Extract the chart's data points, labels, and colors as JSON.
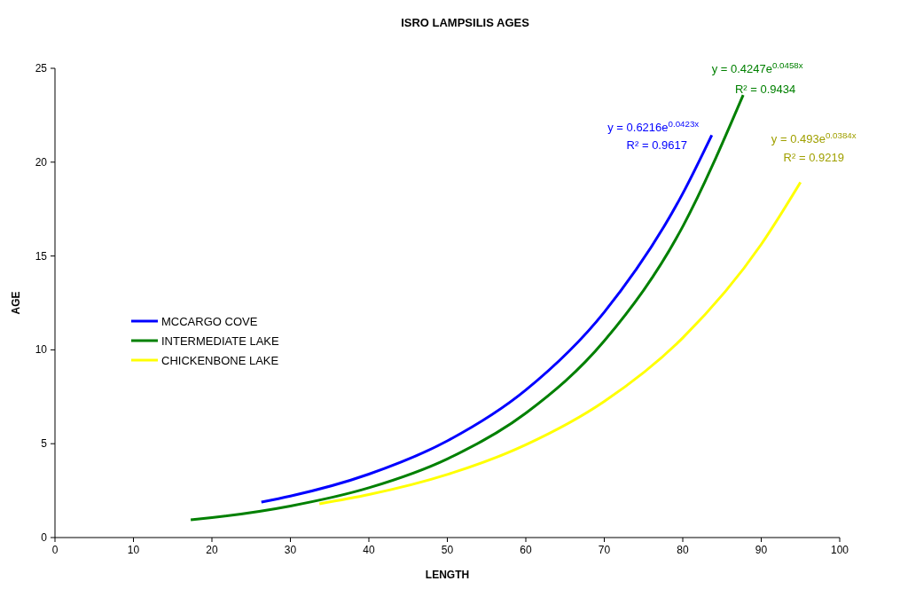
{
  "chart_data": {
    "type": "line",
    "title": "ISRO LAMPSILIS AGES",
    "xlabel": "LENGTH",
    "ylabel": "AGE",
    "xlim": [
      0,
      100
    ],
    "xticks": [
      0,
      10,
      20,
      30,
      40,
      50,
      60,
      70,
      80,
      90,
      100
    ],
    "ylim": [
      0,
      25
    ],
    "yticks": [
      0,
      5,
      10,
      15,
      20,
      25
    ],
    "legend": "left",
    "grid": false,
    "marker": "none",
    "line_style": "solid",
    "series": [
      {
        "name": "MCCARGO COVE",
        "color": "#0000ff",
        "x": [
          26.3,
          30,
          40,
          50,
          60,
          70,
          80,
          83.7
        ],
        "values": [
          1.89,
          2.21,
          3.38,
          5.15,
          7.86,
          12.01,
          18.33,
          21.44
        ]
      },
      {
        "name": "INTERMEDIATE LAKE",
        "color": "#008000",
        "x": [
          17.3,
          20,
          30,
          40,
          50,
          60,
          70,
          80,
          87.7
        ],
        "values": [
          0.94,
          1.06,
          1.68,
          2.65,
          4.19,
          6.63,
          10.48,
          16.57,
          23.58
        ]
      },
      {
        "name": "CHICKENBONE LAKE",
        "color": "#ffff00",
        "x": [
          33.7,
          40,
          50,
          60,
          70,
          80,
          90,
          95
        ],
        "values": [
          1.8,
          2.29,
          3.36,
          4.94,
          7.25,
          10.64,
          15.62,
          18.93
        ]
      }
    ],
    "annotations": [
      "y = 0.6216e$^{0.0423x}$",
      "R² = 0.9617",
      "y = 0.4247e$^{0.0458x}$",
      "R² = 0.9434",
      "y = 0.493e$^{0.0384x}$",
      "R² = 0.9219"
    ]
  }
}
